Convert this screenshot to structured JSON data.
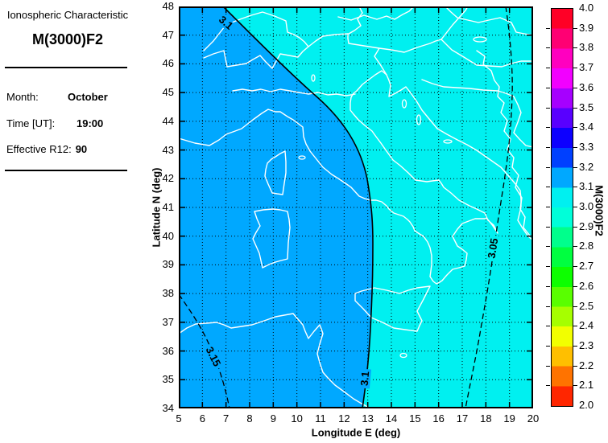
{
  "window": {
    "background": "#FFFFFF"
  },
  "sidebar": {
    "title_line1": "Ionospheric Characteristic",
    "title_line2": "M(3000)F2",
    "fields": [
      {
        "label": "Month:",
        "value": "October"
      },
      {
        "label": "Time [UT]:",
        "value": "19:00"
      },
      {
        "label": "Effective R12:",
        "value": "90"
      }
    ]
  },
  "chart_data": {
    "type": "heatmap",
    "subtype": "filled-contour-map",
    "title": "M(3000)F2",
    "xlabel": "Longitude E (deg)",
    "ylabel": "Latitude N (deg)",
    "xlim": [
      5,
      20
    ],
    "ylim": [
      34,
      48
    ],
    "x_ticks": [
      5,
      6,
      7,
      8,
      9,
      10,
      11,
      12,
      13,
      14,
      15,
      16,
      17,
      18,
      19,
      20
    ],
    "y_ticks": [
      34,
      35,
      36,
      37,
      38,
      39,
      40,
      41,
      42,
      43,
      44,
      45,
      46,
      47,
      48
    ],
    "grid": "dotted",
    "map_region": "Italy and central Mediterranean coastlines drawn in white",
    "fill_bands": [
      {
        "range": "3.0 - 3.1",
        "color": "#00F0F0",
        "area": "east of the 3.1 contour"
      },
      {
        "range": "3.1 - 3.2",
        "color": "#00A8FF",
        "area": "west of the 3.1 contour"
      }
    ],
    "contours": [
      {
        "level": 3.05,
        "label": "3.05",
        "style": "dashed",
        "path": "enters top edge near lon 18.8, runs south-southwest to bottom edge near lon 17.1"
      },
      {
        "level": 3.1,
        "label": "3.1",
        "style": "solid",
        "path": "from top edge near lon 6.9 diagonally southeast to ~(13.0, 42.0), then south along lon ~13.1 to bottom edge"
      },
      {
        "level": 3.15,
        "label": "3.15",
        "style": "dashed",
        "path": "from left edge near lat 37.9 southeast to bottom edge near lon 7.2"
      }
    ],
    "colorbar": {
      "label": "M(3000)F2",
      "min": 2.0,
      "max": 4.0,
      "colormap": "hsv (red-orange-yellow-green-cyan-blue-violet-magenta-red)",
      "ticks": [
        "4.0",
        "3.9",
        "3.8",
        "3.7",
        "3.6",
        "3.5",
        "3.4",
        "3.3",
        "3.2",
        "3.1",
        "3.0",
        "2.9",
        "2.8",
        "2.7",
        "2.6",
        "2.5",
        "2.4",
        "2.3",
        "2.2",
        "2.1",
        "2.0"
      ]
    }
  }
}
